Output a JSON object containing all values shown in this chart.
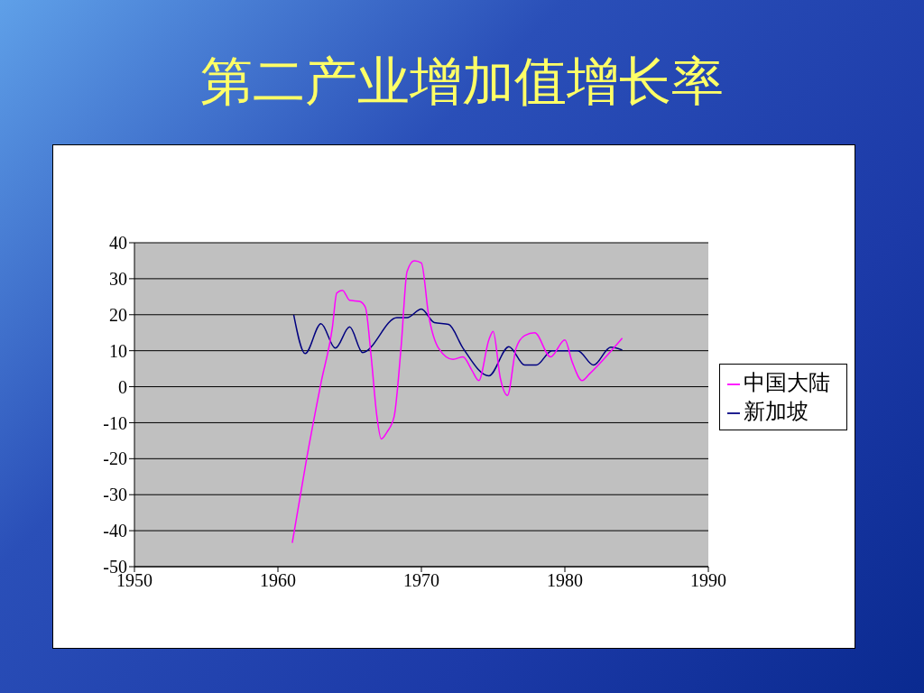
{
  "chart_data": {
    "type": "line",
    "title": "第二产业增加值增长率",
    "xlim": [
      1950,
      1990
    ],
    "xticks": [
      1950,
      1960,
      1970,
      1980,
      1990
    ],
    "ylim": [
      -50,
      40
    ],
    "yticks": [
      -50,
      -40,
      -30,
      -20,
      -10,
      0,
      10,
      20,
      30,
      40
    ],
    "grid": "y",
    "legend": "right",
    "marker": "none",
    "line_style": "solid",
    "series": [
      {
        "name": "新加坡",
        "color": "#000080",
        "x": [
          1961.1,
          1961.9,
          1963,
          1964,
          1965,
          1965.9,
          1968.3,
          1969,
          1970,
          1970.9,
          1971.9,
          1972.9,
          1974.7,
          1976.1,
          1977.2,
          1978,
          1979.1,
          1980,
          1980.9,
          1982,
          1983.2,
          1984
        ],
        "values": [
          20,
          9.2,
          17.5,
          10.7,
          16.6,
          9.5,
          19.2,
          19.2,
          21.6,
          17.8,
          17.3,
          10.7,
          3,
          11.1,
          6,
          6,
          10,
          10,
          10,
          6,
          11,
          10.2
        ]
      },
      {
        "name": "中国大陆",
        "color": "#ff00ff",
        "x": [
          1961,
          1962,
          1963,
          1963.8,
          1964.1,
          1964.5,
          1965,
          1965.7,
          1966.1,
          1966.5,
          1966.9,
          1967.2,
          1967.6,
          1968.1,
          1968.6,
          1969,
          1969.5,
          1970,
          1970.5,
          1971.2,
          1972.2,
          1972.9,
          1973.5,
          1974,
          1974.7,
          1975,
          1975.5,
          1976,
          1976.6,
          1977.2,
          1977.9,
          1979,
          1980,
          1980.5,
          1981.2,
          1981.7,
          1984
        ],
        "values": [
          -43.4,
          -20,
          1,
          16.6,
          26,
          26.8,
          24,
          23.7,
          22,
          8.3,
          -8.3,
          -14.5,
          -12.6,
          -8.3,
          11.8,
          32,
          35,
          34.4,
          20,
          10.7,
          7.6,
          8.3,
          4.7,
          1.7,
          13,
          15.4,
          2.4,
          -2.4,
          10.7,
          14.2,
          15,
          8.3,
          13,
          7,
          1.7,
          3.5,
          13.5
        ]
      }
    ]
  }
}
